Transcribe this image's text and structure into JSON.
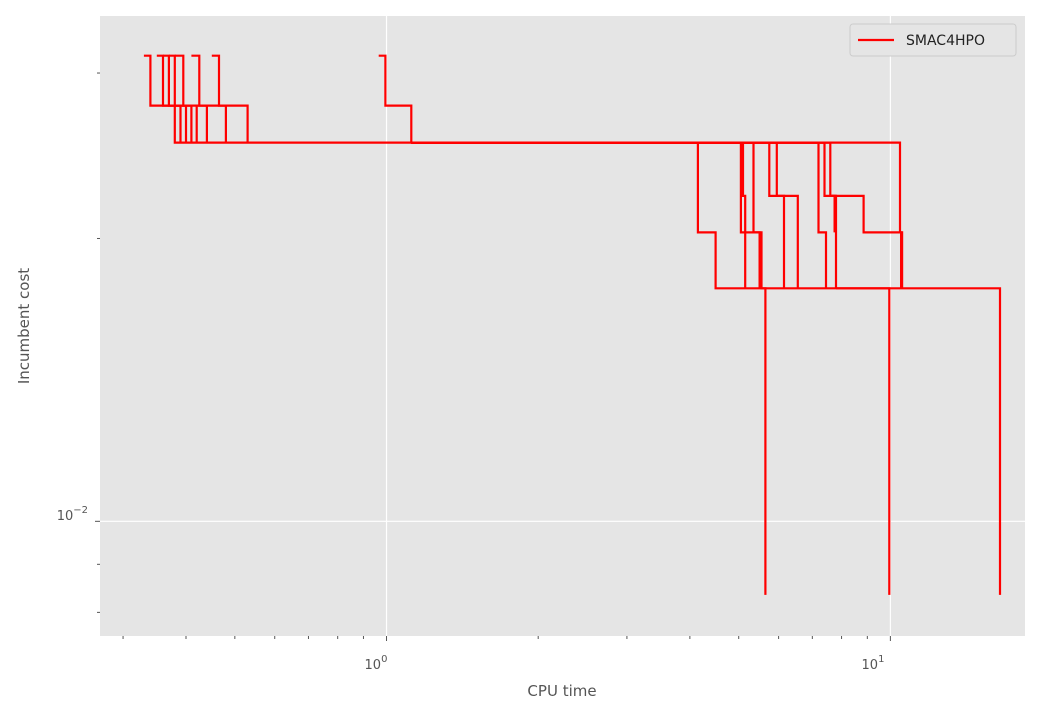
{
  "chart_data": {
    "type": "line",
    "title": "",
    "xlabel": "CPU time",
    "ylabel": "Incumbent cost",
    "xscale": "log",
    "yscale": "log",
    "xlim": [
      0.27,
      18.5
    ],
    "ylim": [
      0.00755,
      0.0345
    ],
    "x_major_ticks": [
      1,
      10
    ],
    "x_major_tick_labels": [
      {
        "base": "10",
        "exp": "0"
      },
      {
        "base": "10",
        "exp": "1"
      }
    ],
    "y_major_ticks": [
      0.01
    ],
    "y_major_tick_labels": [
      {
        "base": "10",
        "exp": "−2"
      }
    ],
    "grid": true,
    "style": "ggplot",
    "legend": {
      "position": "top-right",
      "entries": [
        "SMAC4HPO"
      ]
    },
    "colors": {
      "plot_bg": "#e5e5e5",
      "grid": "#ffffff",
      "series": "#ff0000"
    },
    "series": [
      {
        "name": "SMAC4HPO",
        "x": [
          0.33,
          0.34,
          0.34,
          0.38,
          0.38,
          1.12
        ],
        "y": [
          0.0313,
          0.0313,
          0.0277,
          0.0277,
          0.0253,
          0.0253
        ]
      },
      {
        "x": [
          0.35,
          0.36,
          0.36,
          0.39,
          0.39
        ],
        "y": [
          0.0313,
          0.0313,
          0.0277,
          0.0277,
          0.0253
        ]
      },
      {
        "x": [
          0.36,
          0.37,
          0.37,
          0.4,
          0.4
        ],
        "y": [
          0.0313,
          0.0313,
          0.0277,
          0.0277,
          0.0253
        ]
      },
      {
        "x": [
          0.37,
          0.38,
          0.38,
          0.41,
          0.41
        ],
        "y": [
          0.0313,
          0.0313,
          0.0277,
          0.0277,
          0.0253
        ]
      },
      {
        "x": [
          0.38,
          0.395,
          0.395,
          0.42,
          0.42
        ],
        "y": [
          0.0313,
          0.0313,
          0.0277,
          0.0277,
          0.0253
        ]
      },
      {
        "x": [
          0.41,
          0.425,
          0.425,
          0.44,
          0.44
        ],
        "y": [
          0.0313,
          0.0313,
          0.0277,
          0.0277,
          0.0253
        ]
      },
      {
        "x": [
          0.45,
          0.465,
          0.465,
          0.48,
          0.48
        ],
        "y": [
          0.0313,
          0.0313,
          0.0277,
          0.0277,
          0.0253
        ]
      },
      {
        "x": [
          0.42,
          0.53,
          0.53
        ],
        "y": [
          0.0277,
          0.0277,
          0.0253
        ]
      },
      {
        "x": [
          0.965,
          0.995,
          0.995,
          1.12,
          1.12
        ],
        "y": [
          0.0313,
          0.0313,
          0.0277,
          0.0277,
          0.0253
        ]
      },
      {
        "x": [
          1.12,
          4.15,
          4.15,
          4.5,
          4.5,
          16.5,
          16.5
        ],
        "y": [
          0.0253,
          0.0253,
          0.0203,
          0.0203,
          0.0177,
          0.0177,
          0.00835
        ]
      },
      {
        "x": [
          1.12,
          5.05,
          5.05,
          5.55,
          5.55,
          5.65,
          5.65
        ],
        "y": [
          0.0253,
          0.0253,
          0.0203,
          0.0203,
          0.0177,
          0.0177,
          0.00835
        ]
      },
      {
        "x": [
          1.12,
          5.1,
          5.1,
          5.15,
          5.15
        ],
        "y": [
          0.0253,
          0.0253,
          0.0222,
          0.0222,
          0.0177
        ]
      },
      {
        "x": [
          1.12,
          5.35,
          5.35,
          5.5,
          5.5
        ],
        "y": [
          0.0253,
          0.0253,
          0.0203,
          0.0203,
          0.0177
        ]
      },
      {
        "x": [
          1.12,
          5.75,
          5.75,
          6.55,
          6.55
        ],
        "y": [
          0.0253,
          0.0253,
          0.0222,
          0.0222,
          0.0177
        ]
      },
      {
        "x": [
          1.12,
          5.95,
          5.95,
          6.15,
          6.15
        ],
        "y": [
          0.0253,
          0.0253,
          0.0222,
          0.0222,
          0.0177
        ]
      },
      {
        "x": [
          1.12,
          7.2,
          7.2,
          7.45,
          7.45
        ],
        "y": [
          0.0253,
          0.0253,
          0.0203,
          0.0203,
          0.0177
        ]
      },
      {
        "x": [
          1.12,
          7.4,
          7.4,
          8.85,
          8.85,
          10.55,
          10.55
        ],
        "y": [
          0.0253,
          0.0253,
          0.0222,
          0.0222,
          0.0203,
          0.0203,
          0.0177
        ]
      },
      {
        "x": [
          1.12,
          7.6,
          7.6,
          7.8,
          7.8
        ],
        "y": [
          0.0253,
          0.0253,
          0.0222,
          0.0222,
          0.0177
        ]
      },
      {
        "x": [
          7.65,
          7.75,
          7.75
        ],
        "y": [
          0.0222,
          0.0222,
          0.0203
        ]
      },
      {
        "x": [
          7.8,
          9.95,
          9.95
        ],
        "y": [
          0.0177,
          0.0177,
          0.00835
        ]
      },
      {
        "x": [
          1.12,
          10.45,
          10.45,
          10.5,
          10.5
        ],
        "y": [
          0.0253,
          0.0253,
          0.0203,
          0.0203,
          0.0177
        ]
      }
    ]
  }
}
